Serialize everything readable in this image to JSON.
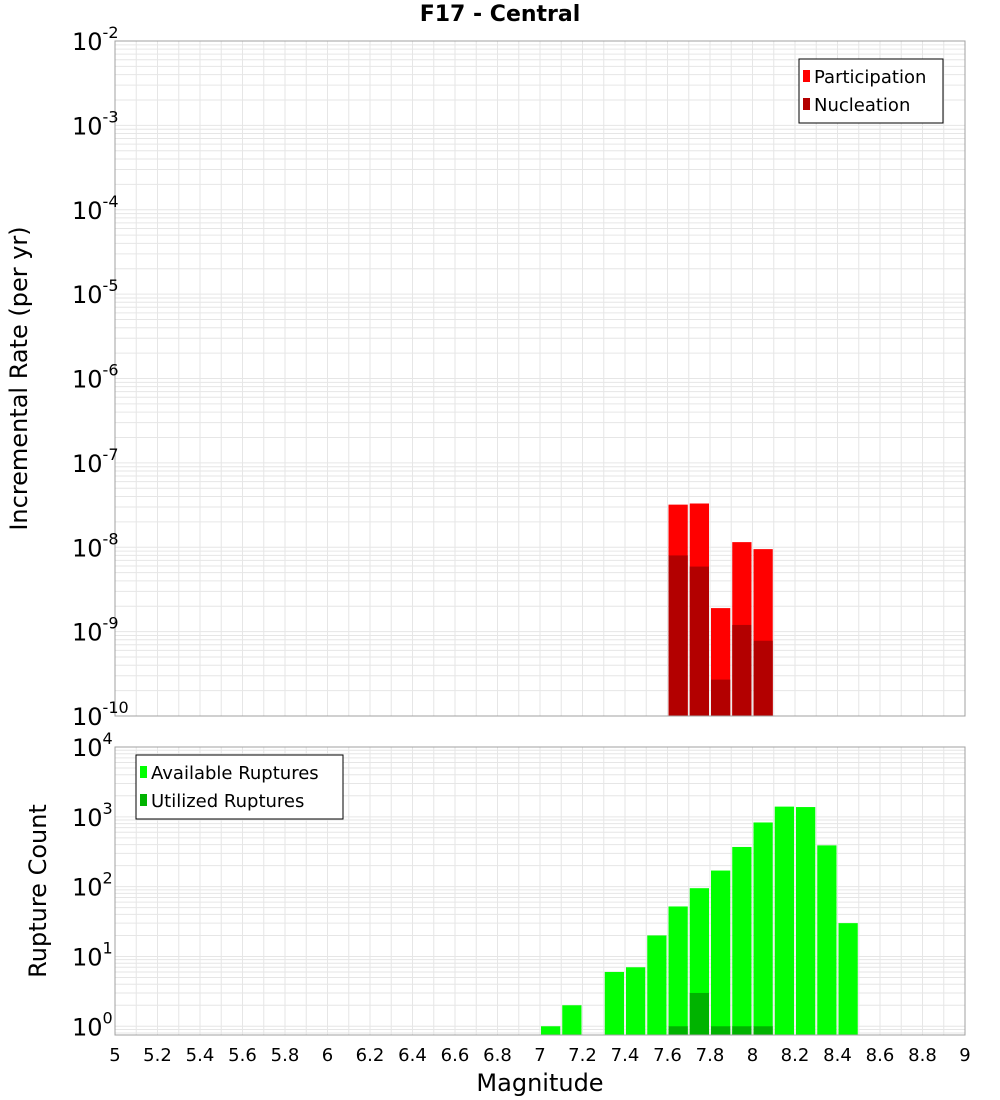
{
  "title": "F17 - Central",
  "colors": {
    "participation": "#ff0000",
    "nucleation": "#b30000",
    "available": "#00ff00",
    "utilized": "#00b300",
    "grid": "#e6e6e6",
    "border": "#a0a0a0"
  },
  "chart_data": [
    {
      "type": "bar",
      "ylabel": "Incremental Rate (per yr)",
      "y_scale": "log",
      "ylim": [
        1e-10,
        0.01
      ],
      "xlim": [
        5,
        9
      ],
      "grid": true,
      "legend_position": "top-right",
      "series": [
        {
          "name": "Participation",
          "x": [
            7.65,
            7.75,
            7.85,
            7.95,
            8.05
          ],
          "values": [
            3.2e-08,
            3.3e-08,
            1.9e-09,
            1.15e-08,
            9.5e-09
          ]
        },
        {
          "name": "Nucleation",
          "x": [
            7.65,
            7.75,
            7.85,
            7.95,
            8.05
          ],
          "values": [
            8e-09,
            5.9e-09,
            2.7e-10,
            1.2e-09,
            7.8e-10
          ]
        }
      ],
      "y_ticks": [
        {
          "base": "10",
          "exp": "-2"
        },
        {
          "base": "10",
          "exp": "-3"
        },
        {
          "base": "10",
          "exp": "-4"
        },
        {
          "base": "10",
          "exp": "-5"
        },
        {
          "base": "10",
          "exp": "-6"
        },
        {
          "base": "10",
          "exp": "-7"
        },
        {
          "base": "10",
          "exp": "-8"
        },
        {
          "base": "10",
          "exp": "-9"
        },
        {
          "base": "10",
          "exp": "-10"
        }
      ]
    },
    {
      "type": "bar",
      "xlabel": "Magnitude",
      "ylabel": "Rupture Count",
      "y_scale": "log",
      "ylim": [
        0.75,
        10000
      ],
      "xlim": [
        5,
        9
      ],
      "grid": true,
      "legend_position": "top-left",
      "series": [
        {
          "name": "Available Ruptures",
          "x": [
            7.05,
            7.15,
            7.35,
            7.45,
            7.55,
            7.65,
            7.75,
            7.85,
            7.95,
            8.05,
            8.15,
            8.25,
            8.35,
            8.45
          ],
          "values": [
            1,
            2,
            6,
            7,
            20,
            52,
            95,
            170,
            370,
            830,
            1400,
            1380,
            390,
            30
          ]
        },
        {
          "name": "Utilized Ruptures",
          "x": [
            7.65,
            7.75,
            7.85,
            7.95,
            8.05
          ],
          "values": [
            1,
            3,
            1,
            1,
            1
          ]
        }
      ],
      "y_ticks": [
        {
          "base": "10",
          "exp": "4"
        },
        {
          "base": "10",
          "exp": "3"
        },
        {
          "base": "10",
          "exp": "2"
        },
        {
          "base": "10",
          "exp": "1"
        },
        {
          "base": "10",
          "exp": "0"
        }
      ],
      "x_ticks": [
        "5",
        "5.2",
        "5.4",
        "5.6",
        "5.8",
        "6",
        "6.2",
        "6.4",
        "6.6",
        "6.8",
        "7",
        "7.2",
        "7.4",
        "7.6",
        "7.8",
        "8",
        "8.2",
        "8.4",
        "8.6",
        "8.8",
        "9"
      ]
    }
  ]
}
